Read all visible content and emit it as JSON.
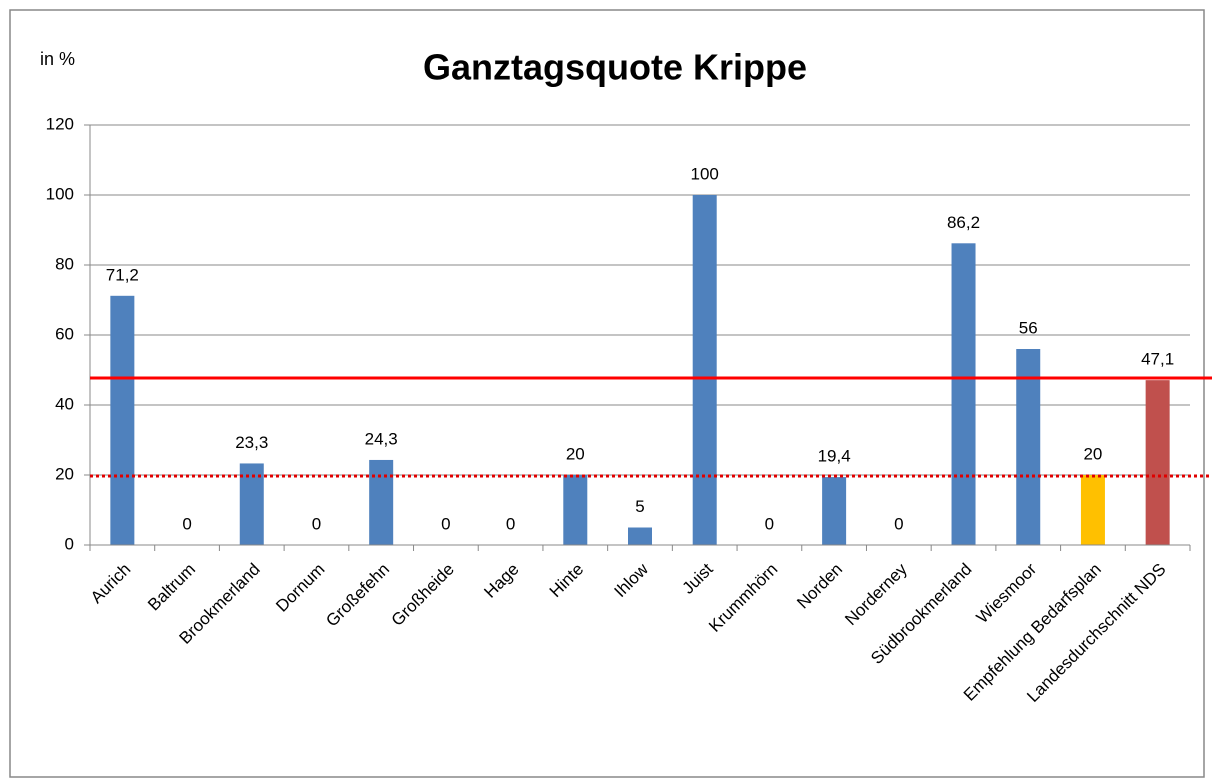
{
  "chart_data": {
    "type": "bar",
    "title": "Ganztagsquote Krippe",
    "y_label": "in %",
    "categories": [
      "Aurich",
      "Baltrum",
      "Brookmerland",
      "Dornum",
      "Großefehn",
      "Großheide",
      "Hage",
      "Hinte",
      "Ihlow",
      "Juist",
      "Krummhörn",
      "Norden",
      "Norderney",
      "Südbrookmerland",
      "Wiesmoor",
      "Empfehlung Bedarfsplan",
      "Landesdurchschnitt NDS"
    ],
    "values": [
      71.2,
      0,
      23.3,
      0,
      24.3,
      0,
      0,
      20,
      5,
      100,
      0,
      19.4,
      0,
      86.2,
      56,
      20,
      47.1
    ],
    "value_labels": [
      "71,2",
      "0",
      "23,3",
      "0",
      "24,3",
      "0",
      "0",
      "20",
      "5",
      "100",
      "0",
      "19,4",
      "0",
      "86,2",
      "56",
      "20",
      "47,1"
    ],
    "colors": [
      "#4f81bd",
      "#4f81bd",
      "#4f81bd",
      "#4f81bd",
      "#4f81bd",
      "#4f81bd",
      "#4f81bd",
      "#4f81bd",
      "#4f81bd",
      "#4f81bd",
      "#4f81bd",
      "#4f81bd",
      "#4f81bd",
      "#4f81bd",
      "#4f81bd",
      "#ffc000",
      "#c0504d"
    ],
    "ylim": [
      0,
      120
    ],
    "yticks": [
      0,
      20,
      40,
      60,
      80,
      100,
      120
    ],
    "grid": true,
    "reference_lines": [
      {
        "value": 47.7,
        "style": "solid",
        "color": "#ff0000"
      },
      {
        "value": 19.7,
        "style": "dotted",
        "color": "#e00000"
      }
    ]
  }
}
